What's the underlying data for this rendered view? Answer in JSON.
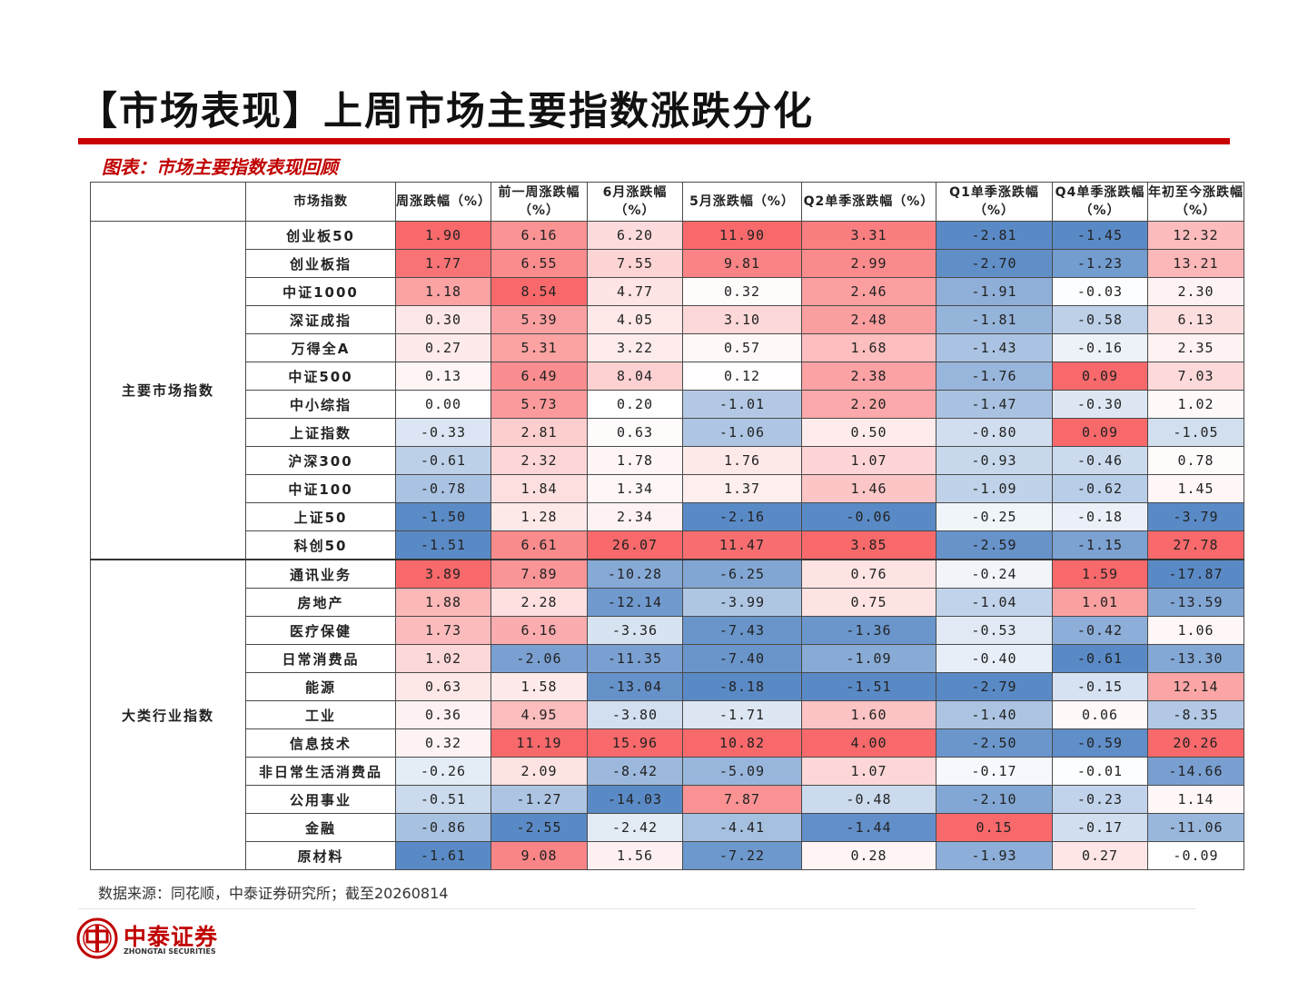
{
  "title": "【市场表现】上周市场主要指数涨跌分化",
  "subtitle": "图表：市场主要指数表现回顾",
  "source": "数据来源：同花顺，中泰证券研究所；截至20260814",
  "logo": {
    "cn": "中泰证券",
    "en": "ZHONGTAI SECURITIES"
  },
  "colors": {
    "accent": "#c80000",
    "positive": "#f8696b",
    "negative": "#5a8ac6"
  },
  "table": {
    "headers": [
      "",
      "市场指数",
      "周涨跌幅（%）",
      "前一周涨跌幅（%）",
      "6月涨跌幅（%）",
      "5月涨跌幅（%）",
      "Q2单季涨跌幅（%）",
      "Q1单季涨跌幅（%）",
      "Q4单季涨跌幅（%）",
      "年初至今涨跌幅（%）"
    ],
    "groups": [
      {
        "name": "主要市场指数",
        "rows": [
          {
            "name": "创业板50",
            "values": [
              "1.90",
              "6.16",
              "6.20",
              "11.90",
              "3.31",
              "-2.81",
              "-1.45",
              "12.32"
            ]
          },
          {
            "name": "创业板指",
            "values": [
              "1.77",
              "6.55",
              "7.55",
              "9.81",
              "2.99",
              "-2.70",
              "-1.23",
              "13.21"
            ]
          },
          {
            "name": "中证1000",
            "values": [
              "1.18",
              "8.54",
              "4.77",
              "0.32",
              "2.46",
              "-1.91",
              "-0.03",
              "2.30"
            ]
          },
          {
            "name": "深证成指",
            "values": [
              "0.30",
              "5.39",
              "4.05",
              "3.10",
              "2.48",
              "-1.81",
              "-0.58",
              "6.13"
            ]
          },
          {
            "name": "万得全A",
            "values": [
              "0.27",
              "5.31",
              "3.22",
              "0.57",
              "1.68",
              "-1.43",
              "-0.16",
              "2.35"
            ]
          },
          {
            "name": "中证500",
            "values": [
              "0.13",
              "6.49",
              "8.04",
              "0.12",
              "2.38",
              "-1.76",
              "0.09",
              "7.03"
            ]
          },
          {
            "name": "中小综指",
            "values": [
              "0.00",
              "5.73",
              "0.20",
              "-1.01",
              "2.20",
              "-1.47",
              "-0.30",
              "1.02"
            ]
          },
          {
            "name": "上证指数",
            "values": [
              "-0.33",
              "2.81",
              "0.63",
              "-1.06",
              "0.50",
              "-0.80",
              "0.09",
              "-1.05"
            ]
          },
          {
            "name": "沪深300",
            "values": [
              "-0.61",
              "2.32",
              "1.78",
              "1.76",
              "1.07",
              "-0.93",
              "-0.46",
              "0.78"
            ]
          },
          {
            "name": "中证100",
            "values": [
              "-0.78",
              "1.84",
              "1.34",
              "1.37",
              "1.46",
              "-1.09",
              "-0.62",
              "1.45"
            ]
          },
          {
            "name": "上证50",
            "values": [
              "-1.50",
              "1.28",
              "2.34",
              "-2.16",
              "-0.06",
              "-0.25",
              "-0.18",
              "-3.79"
            ]
          },
          {
            "name": "科创50",
            "values": [
              "-1.51",
              "6.61",
              "26.07",
              "11.47",
              "3.85",
              "-2.59",
              "-1.15",
              "27.78"
            ]
          }
        ]
      },
      {
        "name": "大类行业指数",
        "rows": [
          {
            "name": "通讯业务",
            "values": [
              "3.89",
              "7.89",
              "-10.28",
              "-6.25",
              "0.76",
              "-0.24",
              "1.59",
              "-17.87"
            ]
          },
          {
            "name": "房地产",
            "values": [
              "1.88",
              "2.28",
              "-12.14",
              "-3.99",
              "0.75",
              "-1.04",
              "1.01",
              "-13.59"
            ]
          },
          {
            "name": "医疗保健",
            "values": [
              "1.73",
              "6.16",
              "-3.36",
              "-7.43",
              "-1.36",
              "-0.53",
              "-0.42",
              "1.06"
            ]
          },
          {
            "name": "日常消费品",
            "values": [
              "1.02",
              "-2.06",
              "-11.35",
              "-7.40",
              "-1.09",
              "-0.40",
              "-0.61",
              "-13.30"
            ]
          },
          {
            "name": "能源",
            "values": [
              "0.63",
              "1.58",
              "-13.04",
              "-8.18",
              "-1.51",
              "-2.79",
              "-0.15",
              "12.14"
            ]
          },
          {
            "name": "工业",
            "values": [
              "0.36",
              "4.95",
              "-3.80",
              "-1.71",
              "1.60",
              "-1.40",
              "0.06",
              "-8.35"
            ]
          },
          {
            "name": "信息技术",
            "values": [
              "0.32",
              "11.19",
              "15.96",
              "10.82",
              "4.00",
              "-2.50",
              "-0.59",
              "20.26"
            ]
          },
          {
            "name": "非日常生活消费品",
            "values": [
              "-0.26",
              "2.09",
              "-8.42",
              "-5.09",
              "1.07",
              "-0.17",
              "-0.01",
              "-14.66"
            ]
          },
          {
            "name": "公用事业",
            "values": [
              "-0.51",
              "-1.27",
              "-14.03",
              "7.87",
              "-0.48",
              "-2.10",
              "-0.23",
              "1.14"
            ]
          },
          {
            "name": "金融",
            "values": [
              "-0.86",
              "-2.55",
              "-2.42",
              "-4.41",
              "-1.44",
              "0.15",
              "-0.17",
              "-11.06"
            ]
          },
          {
            "name": "原材料",
            "values": [
              "-1.61",
              "9.08",
              "1.56",
              "-7.22",
              "0.28",
              "-1.93",
              "0.27",
              "-0.09"
            ]
          }
        ]
      }
    ]
  }
}
